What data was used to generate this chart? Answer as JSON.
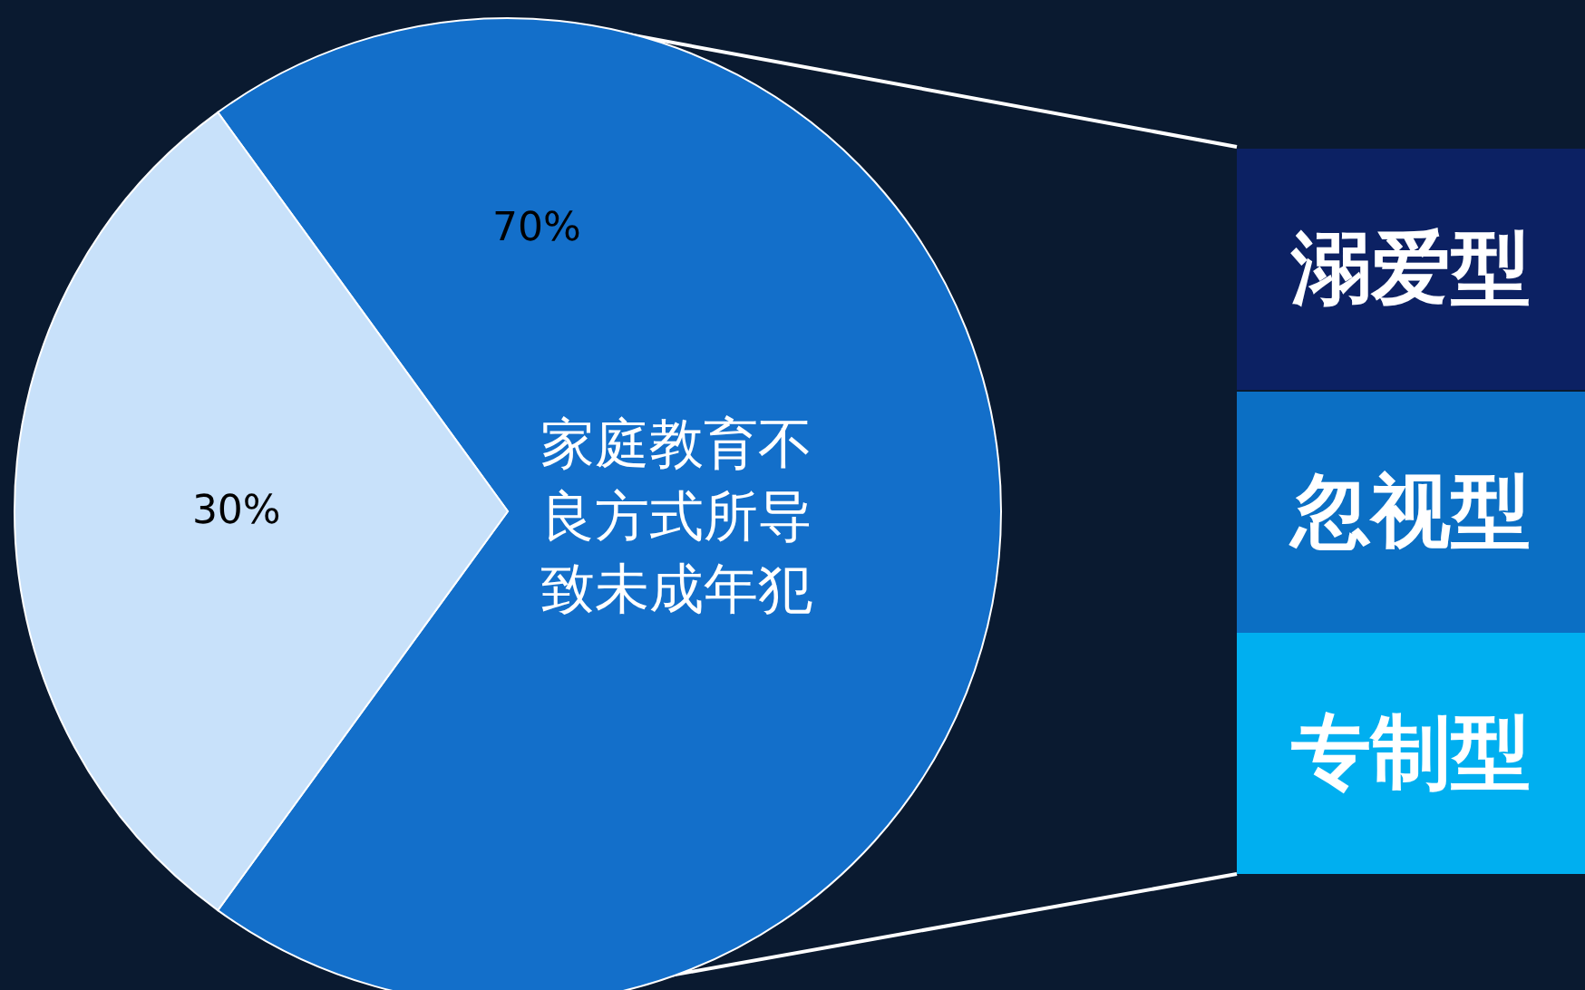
{
  "chart_data": {
    "type": "pie",
    "categories": [
      "家庭教育不良方式所导致未成年犯",
      null
    ],
    "values": [
      70,
      30
    ],
    "colors": [
      "#136fca",
      "#c8e1fa"
    ],
    "value_labels": [
      "70%",
      "30%"
    ],
    "annotations": [
      "溺爱型",
      "忽视型",
      "专制型"
    ]
  }
}
